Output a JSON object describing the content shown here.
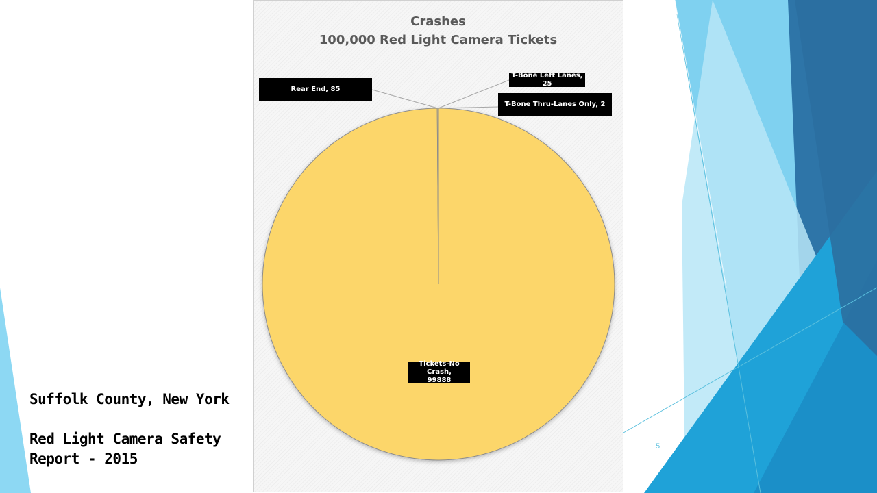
{
  "slide": {
    "location": "Suffolk County, New York",
    "report_line1": "Red Light Camera Safety",
    "report_line2": "Report - 2015",
    "page_number": "5"
  },
  "colors": {
    "pie_main": "#FCD66B",
    "pie_slice_lines": "#8c8c8c",
    "label_bg": "#000000",
    "label_text": "#ffffff",
    "accent_dark": "#2e75a8",
    "accent_mid": "#1fa2d8",
    "accent_light": "#7fd1f0"
  },
  "chart_data": {
    "type": "pie",
    "title": "Crashes",
    "subtitle": "100,000 Red Light Camera Tickets",
    "slices": [
      {
        "name": "Tickets-No Crash",
        "value": 99888,
        "label": "Tickets-No Crash, 99888"
      },
      {
        "name": "Rear End",
        "value": 85,
        "label": "Rear End, 85"
      },
      {
        "name": "T-Bone Left Lanes",
        "value": 25,
        "label": "T-Bone Left Lanes, 25"
      },
      {
        "name": "T-Bone Thru-Lanes Only",
        "value": 2,
        "label": "T-Bone Thru-Lanes Only, 2"
      }
    ],
    "legend": "none"
  }
}
